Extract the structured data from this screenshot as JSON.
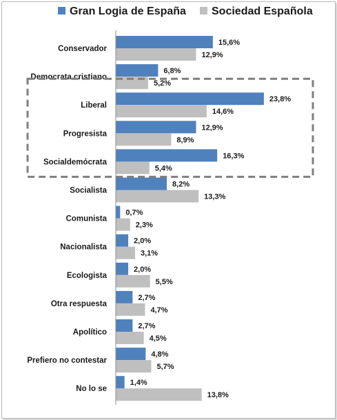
{
  "chart_data": {
    "type": "bar",
    "orientation": "horizontal",
    "categories": [
      "Conservador",
      "Democrata cristiano",
      "Liberal",
      "Progresista",
      "Socialdemócrata",
      "Socialista",
      "Comunista",
      "Nacionalista",
      "Ecologista",
      "Otra respuesta",
      "Apolítico",
      "Prefiero no contestar",
      "No lo se"
    ],
    "series": [
      {
        "name": "Gran Logia de España",
        "color": "#4f81bd",
        "values": [
          15.6,
          6.8,
          23.8,
          12.9,
          16.3,
          8.2,
          0.7,
          2.0,
          2.0,
          2.7,
          2.7,
          4.8,
          1.4
        ],
        "labels": [
          "15,6%",
          "6,8%",
          "23,8%",
          "12,9%",
          "16,3%",
          "8,2%",
          "0,7%",
          "2,0%",
          "2,0%",
          "2,7%",
          "2,7%",
          "4,8%",
          "1,4%"
        ]
      },
      {
        "name": "Sociedad Española",
        "color": "#bfbfbf",
        "values": [
          12.9,
          5.2,
          14.6,
          8.9,
          5.4,
          13.3,
          2.3,
          3.1,
          5.5,
          4.7,
          4.5,
          5.7,
          13.8
        ],
        "labels": [
          "12,9%",
          "5,2%",
          "14,6%",
          "8,9%",
          "5,4%",
          "13,3%",
          "2,3%",
          "3,1%",
          "5,5%",
          "4,7%",
          "4,5%",
          "5,7%",
          "13,8%"
        ]
      }
    ],
    "legend_position": "top",
    "grid": false,
    "highlight": {
      "categories": [
        "Liberal",
        "Progresista",
        "Socialdemócrata"
      ],
      "style": "dashed",
      "color": "#7f7f7f"
    },
    "xlim": [
      0,
      25
    ]
  }
}
